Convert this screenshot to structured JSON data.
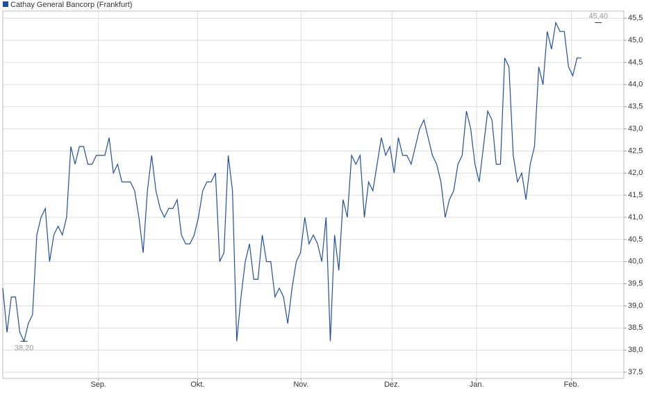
{
  "chart_data": {
    "type": "line",
    "series": [
      {
        "name": "Cathay General Bancorp (Frankfurt)",
        "color": "#1f4e9c",
        "values": [
          39.4,
          38.4,
          39.2,
          39.2,
          38.4,
          38.2,
          38.6,
          38.8,
          40.6,
          41.0,
          41.2,
          40.0,
          40.6,
          40.8,
          40.6,
          41.0,
          42.6,
          42.2,
          42.6,
          42.6,
          42.2,
          42.2,
          42.4,
          42.4,
          42.4,
          42.8,
          42.0,
          42.2,
          41.8,
          41.8,
          41.8,
          41.6,
          41.0,
          40.2,
          41.6,
          42.4,
          41.6,
          41.2,
          41.0,
          41.2,
          41.2,
          41.4,
          40.6,
          40.4,
          40.4,
          40.6,
          41.0,
          41.6,
          41.8,
          41.8,
          42.0,
          40.0,
          40.2,
          42.4,
          41.6,
          38.2,
          39.2,
          40.0,
          40.4,
          39.6,
          39.6,
          40.6,
          40.0,
          40.0,
          39.2,
          39.4,
          39.2,
          38.6,
          39.4,
          40.0,
          40.2,
          41.0,
          40.4,
          40.6,
          40.4,
          40.0,
          41.0,
          38.2,
          40.6,
          39.8,
          41.4,
          41.0,
          42.4,
          42.2,
          42.4,
          41.0,
          41.8,
          41.6,
          42.2,
          42.8,
          42.4,
          42.6,
          42.0,
          42.8,
          42.4,
          42.4,
          42.2,
          42.6,
          43.0,
          43.2,
          42.8,
          42.4,
          42.2,
          41.8,
          41.0,
          41.4,
          41.6,
          42.2,
          42.4,
          43.4,
          43.0,
          42.2,
          41.8,
          42.6,
          43.4,
          43.2,
          42.2,
          42.2,
          44.6,
          44.4,
          42.4,
          41.8,
          42.0,
          41.4,
          42.2,
          42.6,
          44.4,
          44.0,
          45.2,
          44.8,
          45.4,
          45.2,
          45.2,
          44.4,
          44.2,
          44.6,
          44.6
        ]
      }
    ],
    "xlim": [
      0,
      146
    ],
    "xticks": [
      {
        "value": 22.5,
        "label": "Sep."
      },
      {
        "value": 45.8,
        "label": "Okt."
      },
      {
        "value": 70.1,
        "label": "Nov."
      },
      {
        "value": 91.5,
        "label": "Dez."
      },
      {
        "value": 111.4,
        "label": "Jan."
      },
      {
        "value": 133.7,
        "label": "Feb."
      }
    ],
    "ylim": [
      37.36,
      45.66
    ],
    "yticks": [
      {
        "value": 37.5,
        "label": "37,5"
      },
      {
        "value": 38.0,
        "label": "38,0"
      },
      {
        "value": 38.5,
        "label": "38,5"
      },
      {
        "value": 39.0,
        "label": "39,0"
      },
      {
        "value": 39.5,
        "label": "39,5"
      },
      {
        "value": 40.0,
        "label": "40,0"
      },
      {
        "value": 40.5,
        "label": "40,5"
      },
      {
        "value": 41.0,
        "label": "41,0"
      },
      {
        "value": 41.5,
        "label": "41,5"
      },
      {
        "value": 42.0,
        "label": "42,0"
      },
      {
        "value": 42.5,
        "label": "42,5"
      },
      {
        "value": 43.0,
        "label": "43,0"
      },
      {
        "value": 43.5,
        "label": "43,5"
      },
      {
        "value": 44.0,
        "label": "44,0"
      },
      {
        "value": 44.5,
        "label": "44,5"
      },
      {
        "value": 45.0,
        "label": "45,0"
      },
      {
        "value": 45.5,
        "label": "45,5"
      }
    ],
    "grid": true,
    "annotations": [
      {
        "text": "45,40",
        "x": 140,
        "y": 45.4,
        "position": "above"
      },
      {
        "text": "38,20",
        "x": 5,
        "y": 38.2,
        "position": "below"
      }
    ]
  }
}
